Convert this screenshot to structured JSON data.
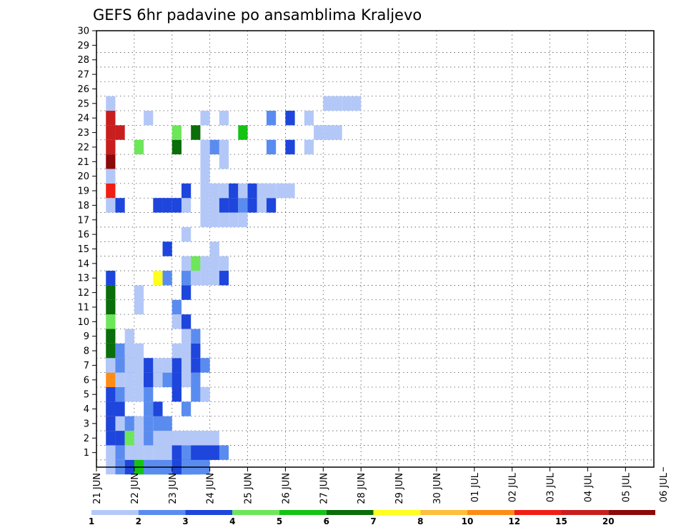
{
  "chart_data": {
    "type": "heatmap",
    "title": "GEFS 6hr padavine po ansamblima Kraljevo",
    "xlabel": "",
    "ylabel": "",
    "x_tick_labels": [
      "21 JUN",
      "22 JUN",
      "23 JUN",
      "24 JUN",
      "25 JUN",
      "26 JUN",
      "27 JUN",
      "28 JUN",
      "29 JUN",
      "30 JUN",
      "01 JUL",
      "02 JUL",
      "03 JUL",
      "04 JUL",
      "05 JUL",
      "06 JUL"
    ],
    "y_tick_labels": [
      "1",
      "2",
      "3",
      "4",
      "5",
      "6",
      "7",
      "8",
      "9",
      "10",
      "11",
      "12",
      "13",
      "14",
      "15",
      "16",
      "17",
      "18",
      "19",
      "20",
      "21",
      "22",
      "23",
      "24",
      "25",
      "26",
      "27",
      "28",
      "29",
      "30"
    ],
    "x_step_hours": 6,
    "x_range_steps": [
      0,
      59
    ],
    "y_range": [
      0,
      30
    ],
    "grid": true,
    "legend": {
      "position": "bottom",
      "levels": [
        "1",
        "2",
        "3",
        "4",
        "5",
        "6",
        "7",
        "8",
        "10",
        "12",
        "15",
        "20"
      ],
      "colors": [
        "#b4c8f8",
        "#5a8cf0",
        "#1e46dc",
        "#6ee65a",
        "#14c314",
        "#0a6e0a",
        "#ffff1e",
        "#ffbe3c",
        "#ff8c14",
        "#f01e14",
        "#c81e1e",
        "#8c0a0a"
      ]
    },
    "cells": [
      [
        0,
        1,
        1,
        1
      ],
      [
        0,
        1,
        2,
        2
      ],
      [
        0,
        2,
        3,
        3
      ],
      [
        0,
        3,
        4,
        5
      ],
      [
        0,
        5,
        5,
        4
      ],
      [
        0,
        6,
        5,
        2
      ],
      [
        0,
        1,
        7,
        2
      ],
      [
        0,
        2,
        7,
        2
      ],
      [
        0,
        2,
        8,
        3
      ],
      [
        0,
        2,
        9,
        2
      ],
      [
        0,
        2,
        10,
        2
      ],
      [
        1,
        1,
        1,
        1
      ],
      [
        1,
        2,
        2,
        2
      ],
      [
        1,
        1,
        3,
        1
      ],
      [
        1,
        1,
        4,
        1
      ],
      [
        1,
        1,
        5,
        1
      ],
      [
        1,
        3,
        6,
        1
      ],
      [
        1,
        6,
        7,
        1
      ],
      [
        1,
        3,
        8,
        3
      ],
      [
        1,
        4,
        8,
        3
      ],
      [
        1,
        5,
        9,
        2
      ],
      [
        1,
        3,
        10,
        3
      ],
      [
        2,
        1,
        1,
        3
      ],
      [
        2,
        1,
        2,
        3
      ],
      [
        2,
        1,
        3,
        4
      ],
      [
        2,
        2,
        4,
        1
      ],
      [
        2,
        3,
        5,
        2
      ],
      [
        2,
        2,
        6,
        1
      ],
      [
        2,
        1,
        7,
        1
      ],
      [
        2,
        1,
        8,
        1
      ],
      [
        2,
        2,
        9,
        1
      ],
      [
        2,
        3,
        10,
        1
      ],
      [
        3,
        1,
        1,
        9
      ],
      [
        3,
        2,
        1,
        3
      ],
      [
        3,
        1,
        2,
        1
      ],
      [
        3,
        1,
        3,
        2
      ],
      [
        3,
        1,
        4,
        1
      ],
      [
        3,
        1,
        5,
        2
      ],
      [
        3,
        1,
        6,
        1
      ],
      [
        3,
        2,
        6,
        2
      ],
      [
        4,
        1,
        1,
        9
      ],
      [
        4,
        2,
        1,
        3
      ],
      [
        4,
        1,
        5,
        2
      ],
      [
        4,
        1,
        6,
        3
      ],
      [
        4,
        1,
        9,
        2
      ],
      [
        5,
        1,
        1,
        3
      ],
      [
        5,
        1,
        2,
        2
      ],
      [
        5,
        1,
        3,
        1
      ],
      [
        5,
        1,
        4,
        1
      ],
      [
        5,
        1,
        5,
        2
      ],
      [
        5,
        1,
        8,
        3
      ],
      [
        5,
        1,
        10,
        2
      ],
      [
        5,
        1,
        11,
        1
      ],
      [
        6,
        1,
        1,
        9
      ],
      [
        6,
        1,
        2,
        1
      ],
      [
        6,
        1,
        3,
        1
      ],
      [
        6,
        1,
        4,
        1
      ],
      [
        6,
        1,
        5,
        3
      ],
      [
        6,
        2,
        5,
        3
      ],
      [
        6,
        1,
        6,
        1
      ],
      [
        6,
        1,
        7,
        1
      ],
      [
        6,
        2,
        7,
        2
      ],
      [
        6,
        1,
        8,
        3
      ],
      [
        6,
        1,
        9,
        1
      ],
      [
        6,
        1,
        10,
        2
      ],
      [
        7,
        1,
        1,
        2
      ],
      [
        7,
        2,
        1,
        1
      ],
      [
        7,
        1,
        2,
        2
      ],
      [
        7,
        1,
        3,
        2
      ],
      [
        7,
        3,
        3,
        1
      ],
      [
        7,
        1,
        4,
        1
      ],
      [
        7,
        1,
        5,
        3
      ],
      [
        7,
        1,
        6,
        1
      ],
      [
        7,
        1,
        7,
        1
      ],
      [
        7,
        1,
        8,
        3
      ],
      [
        7,
        1,
        9,
        1
      ],
      [
        7,
        1,
        10,
        3
      ],
      [
        7,
        1,
        11,
        2
      ],
      [
        8,
        1,
        1,
        6
      ],
      [
        8,
        1,
        2,
        2
      ],
      [
        8,
        1,
        3,
        1
      ],
      [
        8,
        1,
        4,
        1
      ],
      [
        8,
        1,
        8,
        1
      ],
      [
        8,
        1,
        9,
        1
      ],
      [
        8,
        1,
        10,
        3
      ],
      [
        9,
        1,
        1,
        6
      ],
      [
        9,
        1,
        3,
        1
      ],
      [
        9,
        1,
        9,
        1
      ],
      [
        9,
        1,
        10,
        2
      ],
      [
        10,
        1,
        1,
        4
      ],
      [
        10,
        1,
        8,
        1
      ],
      [
        10,
        1,
        9,
        3
      ],
      [
        11,
        1,
        1,
        6
      ],
      [
        11,
        1,
        4,
        1
      ],
      [
        11,
        1,
        8,
        2
      ],
      [
        12,
        1,
        1,
        6
      ],
      [
        12,
        1,
        4,
        1
      ],
      [
        12,
        1,
        9,
        3
      ],
      [
        13,
        1,
        1,
        3
      ],
      [
        13,
        1,
        6,
        7
      ],
      [
        13,
        1,
        7,
        2
      ],
      [
        13,
        1,
        9,
        2
      ],
      [
        13,
        1,
        10,
        1
      ],
      [
        13,
        1,
        11,
        1
      ],
      [
        13,
        1,
        12,
        1
      ],
      [
        13,
        1,
        13,
        3
      ],
      [
        14,
        1,
        9,
        1
      ],
      [
        14,
        1,
        10,
        4
      ],
      [
        14,
        1,
        11,
        1
      ],
      [
        14,
        1,
        12,
        1
      ],
      [
        14,
        1,
        13,
        1
      ],
      [
        15,
        1,
        7,
        3
      ],
      [
        15,
        1,
        12,
        1
      ],
      [
        16,
        1,
        9,
        1
      ],
      [
        17,
        1,
        11,
        1
      ],
      [
        17,
        1,
        12,
        1
      ],
      [
        17,
        1,
        13,
        1
      ],
      [
        17,
        1,
        14,
        1
      ],
      [
        17,
        1,
        15,
        1
      ],
      [
        18,
        1,
        1,
        1
      ],
      [
        18,
        1,
        2,
        3
      ],
      [
        18,
        1,
        6,
        1
      ],
      [
        18,
        1,
        6,
        3
      ],
      [
        18,
        1,
        7,
        3
      ],
      [
        18,
        1,
        8,
        3
      ],
      [
        18,
        1,
        9,
        1
      ],
      [
        18,
        1,
        11,
        1
      ],
      [
        18,
        1,
        12,
        1
      ],
      [
        18,
        1,
        13,
        3
      ],
      [
        18,
        1,
        14,
        3
      ],
      [
        18,
        1,
        15,
        2
      ],
      [
        18,
        1,
        16,
        3
      ],
      [
        18,
        1,
        17,
        1
      ],
      [
        18,
        1,
        18,
        3
      ],
      [
        19,
        1,
        1,
        10
      ],
      [
        19,
        1,
        9,
        3
      ],
      [
        19,
        1,
        11,
        1
      ],
      [
        19,
        1,
        12,
        1
      ],
      [
        19,
        1,
        13,
        1
      ],
      [
        19,
        1,
        14,
        3
      ],
      [
        19,
        1,
        15,
        1
      ],
      [
        19,
        1,
        16,
        3
      ],
      [
        19,
        1,
        17,
        1
      ],
      [
        19,
        1,
        18,
        1
      ],
      [
        19,
        1,
        19,
        1
      ],
      [
        19,
        1,
        20,
        1
      ],
      [
        20,
        1,
        1,
        1
      ],
      [
        20,
        1,
        11,
        1
      ],
      [
        21,
        1,
        1,
        12
      ],
      [
        21,
        1,
        11,
        1
      ],
      [
        21,
        1,
        13,
        1
      ],
      [
        22,
        1,
        1,
        11
      ],
      [
        22,
        1,
        4,
        4
      ],
      [
        22,
        1,
        8,
        6
      ],
      [
        22,
        1,
        11,
        1
      ],
      [
        22,
        1,
        12,
        2
      ],
      [
        22,
        1,
        13,
        1
      ],
      [
        22,
        1,
        18,
        2
      ],
      [
        22,
        1,
        20,
        3
      ],
      [
        22,
        1,
        22,
        1
      ],
      [
        23,
        1,
        1,
        11
      ],
      [
        23,
        1,
        2,
        11
      ],
      [
        23,
        1,
        8,
        4
      ],
      [
        23,
        1,
        10,
        6
      ],
      [
        23,
        1,
        15,
        5
      ],
      [
        23,
        1,
        23,
        1
      ],
      [
        23,
        1,
        24,
        1
      ],
      [
        23,
        1,
        25,
        1
      ],
      [
        24,
        1,
        1,
        11
      ],
      [
        24,
        1,
        5,
        1
      ],
      [
        24,
        1,
        11,
        1
      ],
      [
        24,
        1,
        13,
        1
      ],
      [
        24,
        1,
        18,
        2
      ],
      [
        24,
        1,
        20,
        3
      ],
      [
        24,
        1,
        22,
        1
      ],
      [
        25,
        1,
        1,
        1
      ],
      [
        25,
        1,
        24,
        1
      ],
      [
        25,
        1,
        25,
        1
      ],
      [
        25,
        1,
        26,
        1
      ],
      [
        25,
        1,
        27,
        1
      ]
    ]
  }
}
